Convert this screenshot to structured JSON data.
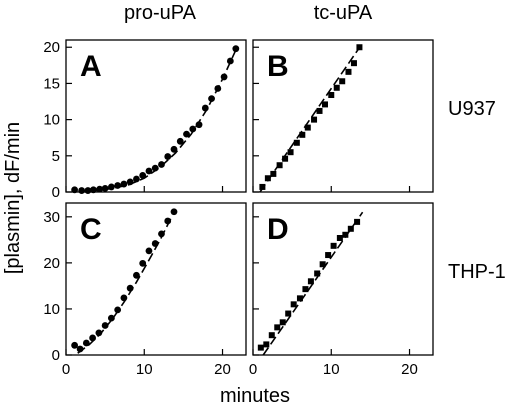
{
  "figure": {
    "columns": [
      "pro-uPA",
      "tc-uPA"
    ],
    "rows": [
      "U937",
      "THP-1"
    ],
    "xlabel": "minutes",
    "ylabel": "[plasmin], dF/min"
  },
  "chart_data": [
    {
      "type": "scatter",
      "panel": "A",
      "marker": "circle",
      "xlim": [
        0,
        23
      ],
      "ylim": [
        0,
        21
      ],
      "xticks": [
        0,
        10,
        20
      ],
      "yticks": [
        0,
        5,
        10,
        15,
        20
      ],
      "x": [
        1.1,
        2.0,
        2.8,
        3.5,
        4.3,
        5.0,
        5.8,
        6.6,
        7.4,
        8.2,
        9.0,
        9.8,
        10.6,
        11.4,
        12.2,
        13.0,
        13.8,
        14.6,
        15.4,
        16.2,
        17.0,
        17.8,
        18.6,
        19.4,
        20.2,
        21.0,
        21.7
      ],
      "y": [
        0.3,
        0.2,
        0.2,
        0.3,
        0.4,
        0.5,
        0.7,
        0.9,
        1.1,
        1.4,
        1.8,
        2.3,
        2.9,
        3.3,
        3.8,
        4.9,
        5.9,
        7.0,
        8.0,
        8.7,
        9.3,
        11.6,
        12.9,
        14.3,
        15.9,
        18.1,
        19.8
      ],
      "fit": {
        "x": [
          3.0,
          6,
          8,
          10,
          12,
          14,
          16,
          18,
          20,
          21.7
        ],
        "y": [
          0.1,
          0.5,
          1.0,
          1.9,
          3.4,
          5.4,
          8.0,
          11.4,
          15.6,
          19.6
        ]
      }
    },
    {
      "type": "scatter",
      "panel": "B",
      "marker": "square",
      "xlim": [
        0,
        23
      ],
      "ylim": [
        0,
        21
      ],
      "xticks": [
        0,
        10,
        20
      ],
      "yticks": [
        0,
        5,
        10,
        15,
        20
      ],
      "x": [
        1.2,
        1.9,
        2.6,
        3.4,
        4.1,
        4.8,
        5.6,
        6.3,
        7.0,
        7.8,
        8.5,
        9.2,
        10.0,
        10.7,
        11.4,
        12.2,
        12.9,
        13.6
      ],
      "y": [
        0.7,
        1.9,
        2.5,
        3.7,
        4.6,
        5.5,
        6.8,
        7.9,
        8.9,
        10.0,
        11.2,
        12.1,
        13.4,
        14.4,
        15.3,
        16.6,
        17.8,
        20.0
      ],
      "fit": {
        "x": [
          0.9,
          13.7
        ],
        "y": [
          0.0,
          20.1
        ]
      }
    },
    {
      "type": "scatter",
      "panel": "C",
      "marker": "circle",
      "xlim": [
        0,
        23
      ],
      "ylim": [
        0,
        33
      ],
      "xticks": [
        0,
        10,
        20
      ],
      "yticks": [
        0,
        10,
        20,
        30
      ],
      "x": [
        1.1,
        1.8,
        2.6,
        3.4,
        4.2,
        5.0,
        5.8,
        6.6,
        7.4,
        8.2,
        9.0,
        9.8,
        10.6,
        11.4,
        12.2,
        13.0,
        13.8
      ],
      "y": [
        2.1,
        1.3,
        2.6,
        3.7,
        4.8,
        6.4,
        8.0,
        9.8,
        12.4,
        14.5,
        17.3,
        19.9,
        22.6,
        24.2,
        26.3,
        29.1,
        31.1
      ],
      "fit": {
        "x": [
          1.5,
          3,
          4.5,
          6,
          7.5,
          9,
          10.5,
          12,
          13.6
        ],
        "y": [
          0.4,
          2.3,
          4.8,
          8.0,
          11.7,
          15.8,
          20.3,
          24.9,
          30.3
        ]
      }
    },
    {
      "type": "scatter",
      "panel": "D",
      "marker": "square",
      "xlim": [
        0,
        23
      ],
      "ylim": [
        0,
        33
      ],
      "xticks": [
        0,
        10,
        20
      ],
      "yticks": [
        0,
        10,
        20,
        30
      ],
      "x": [
        1.0,
        1.7,
        2.4,
        3.1,
        3.8,
        4.5,
        5.2,
        6.0,
        6.7,
        7.4,
        8.2,
        8.9,
        9.6,
        10.3,
        11.1,
        11.8,
        12.5,
        13.3
      ],
      "y": [
        1.6,
        2.3,
        4.3,
        6.0,
        7.1,
        9.0,
        11.0,
        12.3,
        14.3,
        16.0,
        17.7,
        19.7,
        21.7,
        23.7,
        25.4,
        26.1,
        27.4,
        28.9
      ],
      "fit": {
        "x": [
          1.3,
          14.0
        ],
        "y": [
          0.0,
          31.0
        ]
      }
    }
  ]
}
